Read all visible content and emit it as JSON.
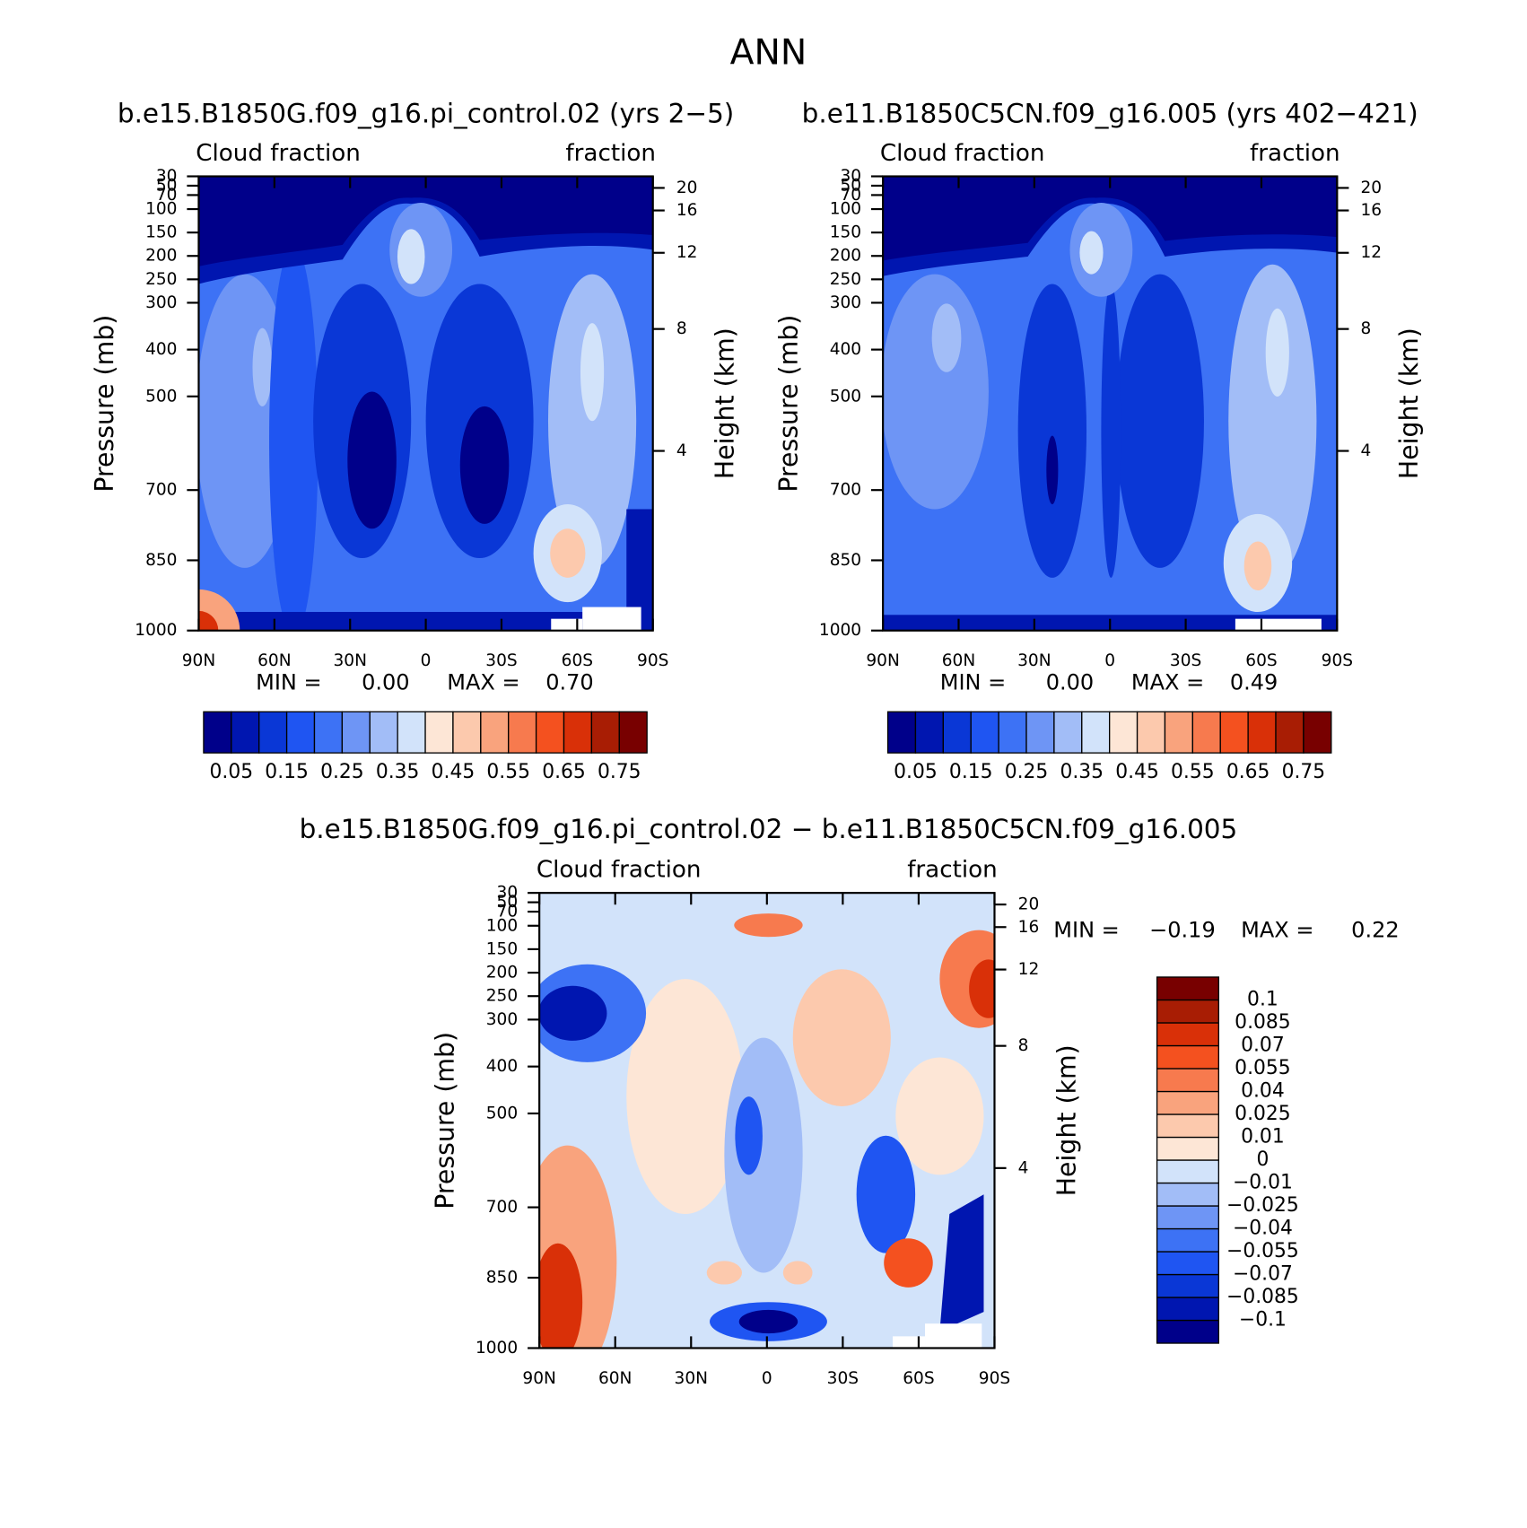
{
  "figure_title": "ANN",
  "chart_data": [
    {
      "type": "contour",
      "title": "b.e15.B1850G.f09_g16.pi_control.02 (yrs 2−5)",
      "left_label": "Cloud fraction",
      "right_label": "fraction",
      "ylabel": "Pressure (mb)",
      "y2label": "Height (km)",
      "xlim": [
        90,
        -90
      ],
      "xticks": [
        {
          "value": 90,
          "label": "90N"
        },
        {
          "value": 60,
          "label": "60N"
        },
        {
          "value": 30,
          "label": "30N"
        },
        0,
        {
          "value": -30,
          "label": "30S"
        },
        {
          "value": -60,
          "label": "60S"
        },
        {
          "value": -90,
          "label": "90S"
        }
      ],
      "ylim": [
        1000,
        30
      ],
      "yticks": [
        30,
        50,
        70,
        100,
        150,
        200,
        250,
        300,
        400,
        500,
        700,
        850,
        1000
      ],
      "y2ticks": [
        20,
        16,
        12,
        8,
        4
      ],
      "min_text": "MIN =",
      "min": {
        "value": 0,
        "label": "0.00"
      },
      "max_text": "MAX =",
      "max": {
        "value": 0.7,
        "label": "0.70"
      },
      "colorbar": {
        "levels": [
          0.05,
          null,
          0.15,
          null,
          0.25,
          null,
          0.35,
          null,
          0.45,
          null,
          0.55,
          null,
          0.65,
          null,
          0.75
        ],
        "colors": [
          "#00008a",
          "#0016b0",
          "#0a37d6",
          "#1f55f2",
          "#3d72f5",
          "#6e95f5",
          "#a2bdf7",
          "#d2e3fa",
          "#fde6d6",
          "#fcc9ad",
          "#f9a37d",
          "#f77a4e",
          "#f4511f",
          "#d93008",
          "#a81d04",
          "#780000"
        ]
      }
    },
    {
      "type": "contour",
      "title": "b.e11.B1850C5CN.f09_g16.005 (yrs 402−421)",
      "left_label": "Cloud fraction",
      "right_label": "fraction",
      "ylabel": "Pressure (mb)",
      "y2label": "Height (km)",
      "xlim": [
        90,
        -90
      ],
      "xticks": [
        {
          "value": 90,
          "label": "90N"
        },
        {
          "value": 60,
          "label": "60N"
        },
        {
          "value": 30,
          "label": "30N"
        },
        0,
        {
          "value": -30,
          "label": "30S"
        },
        {
          "value": -60,
          "label": "60S"
        },
        {
          "value": -90,
          "label": "90S"
        }
      ],
      "ylim": [
        1000,
        30
      ],
      "yticks": [
        30,
        50,
        70,
        100,
        150,
        200,
        250,
        300,
        400,
        500,
        700,
        850,
        1000
      ],
      "y2ticks": [
        20,
        16,
        12,
        8,
        4
      ],
      "min_text": "MIN =",
      "min": {
        "value": 0,
        "label": "0.00"
      },
      "max_text": "MAX =",
      "max": {
        "value": 0.49,
        "label": "0.49"
      },
      "colorbar": {
        "levels": [
          0.05,
          null,
          0.15,
          null,
          0.25,
          null,
          0.35,
          null,
          0.45,
          null,
          0.55,
          null,
          0.65,
          null,
          0.75
        ],
        "colors": [
          "#00008a",
          "#0016b0",
          "#0a37d6",
          "#1f55f2",
          "#3d72f5",
          "#6e95f5",
          "#a2bdf7",
          "#d2e3fa",
          "#fde6d6",
          "#fcc9ad",
          "#f9a37d",
          "#f77a4e",
          "#f4511f",
          "#d93008",
          "#a81d04",
          "#780000"
        ]
      }
    },
    {
      "type": "contour",
      "title": "b.e15.B1850G.f09_g16.pi_control.02 − b.e11.B1850C5CN.f09_g16.005",
      "left_label": "Cloud fraction",
      "right_label": "fraction",
      "ylabel": "Pressure (mb)",
      "y2label": "Height (km)",
      "xlim": [
        90,
        -90
      ],
      "xticks": [
        {
          "value": 90,
          "label": "90N"
        },
        {
          "value": 60,
          "label": "60N"
        },
        {
          "value": 30,
          "label": "30N"
        },
        0,
        {
          "value": -30,
          "label": "30S"
        },
        {
          "value": -60,
          "label": "60S"
        },
        {
          "value": -90,
          "label": "90S"
        }
      ],
      "ylim": [
        1000,
        30
      ],
      "yticks": [
        30,
        50,
        70,
        100,
        150,
        200,
        250,
        300,
        400,
        500,
        700,
        850,
        1000
      ],
      "y2ticks": [
        20,
        16,
        12,
        8,
        4
      ],
      "min_text": "MIN =",
      "min": {
        "value": -0.19,
        "label": "−0.19"
      },
      "max_text": "MAX =",
      "max": {
        "value": 0.22,
        "label": "0.22"
      },
      "colorbar": {
        "levels": [
          {
            "value": -0.1,
            "label": "−0.1"
          },
          {
            "value": -0.085,
            "label": "−0.085"
          },
          {
            "value": -0.07,
            "label": "−0.07"
          },
          {
            "value": -0.055,
            "label": "−0.055"
          },
          {
            "value": -0.04,
            "label": "−0.04"
          },
          {
            "value": -0.025,
            "label": "−0.025"
          },
          {
            "value": -0.01,
            "label": "−0.01"
          },
          0,
          0.01,
          0.025,
          0.04,
          0.055,
          0.07,
          0.085,
          0.1
        ],
        "colors": [
          "#00008a",
          "#0016b0",
          "#0a37d6",
          "#1f55f2",
          "#3d72f5",
          "#6e95f5",
          "#a2bdf7",
          "#d2e3fa",
          "#fde6d6",
          "#fcc9ad",
          "#f9a37d",
          "#f77a4e",
          "#f4511f",
          "#d93008",
          "#a81d04",
          "#780000"
        ]
      }
    }
  ]
}
